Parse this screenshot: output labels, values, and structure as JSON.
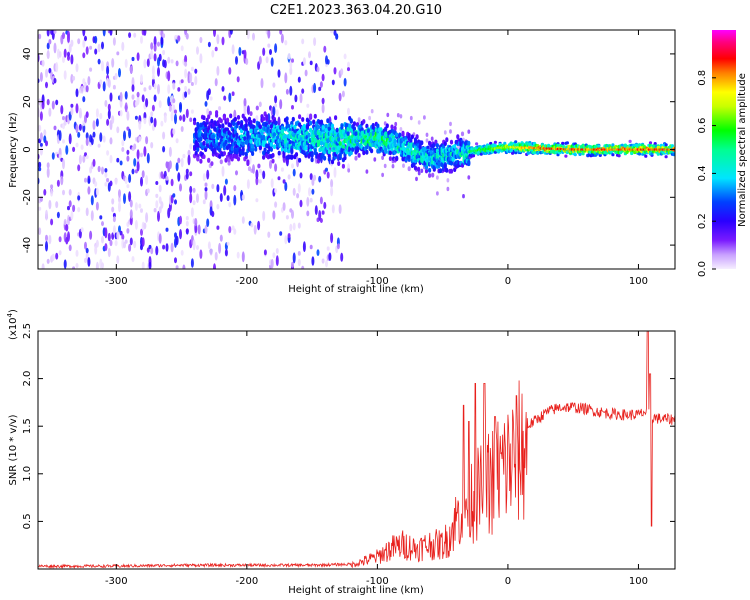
{
  "figure": {
    "title": "C2E1.2023.363.04.20.G10"
  },
  "chart_data": [
    {
      "type": "heatmap",
      "title": "C2E1.2023.363.04.20.G10",
      "xlabel": "Height of straight line (km)",
      "ylabel": "Frequency (Hz)",
      "xlim": [
        -360,
        128
      ],
      "ylim": [
        -50,
        50
      ],
      "x_ticks": [
        -300,
        -200,
        -100,
        0,
        100
      ],
      "y_ticks": [
        -40,
        -20,
        0,
        20,
        40
      ],
      "colorbar": {
        "label": "Normalized spectral amplitude",
        "range": [
          0,
          1
        ],
        "ticks": [
          0.0,
          0.2,
          0.4,
          0.6,
          0.8
        ],
        "colormap": "rainbow (purple-blue-cyan-green-yellow-red-magenta)"
      },
      "ridge": {
        "description": "scattered low-amplitude noise for heights below about -125 km; a concentrated band near 0 Hz beyond that",
        "center_freq_hz": [
          {
            "x": -230,
            "y": 5
          },
          {
            "x": -180,
            "y": 5
          },
          {
            "x": -130,
            "y": 4
          },
          {
            "x": -100,
            "y": 5
          },
          {
            "x": -80,
            "y": 1
          },
          {
            "x": -60,
            "y": -4
          },
          {
            "x": -40,
            "y": -2
          },
          {
            "x": -20,
            "y": 0
          },
          {
            "x": 0,
            "y": 1
          },
          {
            "x": 50,
            "y": 0
          },
          {
            "x": 100,
            "y": 0
          },
          {
            "x": 128,
            "y": 0
          }
        ],
        "peak_amplitude": [
          {
            "x": -230,
            "y": 0.35
          },
          {
            "x": -180,
            "y": 0.45
          },
          {
            "x": -120,
            "y": 0.55
          },
          {
            "x": -100,
            "y": 0.6
          },
          {
            "x": -80,
            "y": 0.5
          },
          {
            "x": -60,
            "y": 0.5
          },
          {
            "x": -40,
            "y": 0.5
          },
          {
            "x": -20,
            "y": 0.6
          },
          {
            "x": 0,
            "y": 0.7
          },
          {
            "x": 20,
            "y": 0.85
          },
          {
            "x": 100,
            "y": 0.85
          },
          {
            "x": 128,
            "y": 0.85
          }
        ]
      },
      "colors": {
        "scale": [
          "#f2e8ff",
          "#a050ff",
          "#5b00ff",
          "#0000ff",
          "#00ffff",
          "#00ff00",
          "#ffff00",
          "#ff0000",
          "#ff00ff"
        ]
      }
    },
    {
      "type": "line",
      "xlabel": "Height of straight line (km)",
      "ylabel": "SNR (10 * v/v)",
      "y_multiplier_label": "(x10",
      "y_multiplier_exp": "4",
      "y_multiplier_close": ")",
      "xlim": [
        -360,
        128
      ],
      "ylim": [
        0,
        2.5
      ],
      "x_ticks": [
        -300,
        -200,
        -100,
        0,
        100
      ],
      "y_ticks": [
        0.5,
        1.0,
        1.5,
        2.0,
        2.5
      ],
      "series": [
        {
          "color": "#e8201c",
          "envelope": [
            {
              "x": -360,
              "y": 0.03
            },
            {
              "x": -300,
              "y": 0.03
            },
            {
              "x": -250,
              "y": 0.04
            },
            {
              "x": -200,
              "y": 0.04
            },
            {
              "x": -150,
              "y": 0.04
            },
            {
              "x": -120,
              "y": 0.05
            },
            {
              "x": -110,
              "y": 0.1
            },
            {
              "x": -100,
              "y": 0.15
            },
            {
              "x": -90,
              "y": 0.25
            },
            {
              "x": -80,
              "y": 0.3
            },
            {
              "x": -70,
              "y": 0.25
            },
            {
              "x": -60,
              "y": 0.3
            },
            {
              "x": -50,
              "y": 0.3
            },
            {
              "x": -45,
              "y": 0.4
            },
            {
              "x": -40,
              "y": 0.6
            },
            {
              "x": -35,
              "y": 0.75
            },
            {
              "x": -30,
              "y": 0.85
            },
            {
              "x": -20,
              "y": 0.95
            },
            {
              "x": -10,
              "y": 1.15
            },
            {
              "x": 0,
              "y": 1.3
            },
            {
              "x": 10,
              "y": 1.45
            },
            {
              "x": 20,
              "y": 1.55
            },
            {
              "x": 30,
              "y": 1.65
            },
            {
              "x": 40,
              "y": 1.7
            },
            {
              "x": 50,
              "y": 1.7
            },
            {
              "x": 60,
              "y": 1.68
            },
            {
              "x": 70,
              "y": 1.65
            },
            {
              "x": 80,
              "y": 1.63
            },
            {
              "x": 90,
              "y": 1.62
            },
            {
              "x": 100,
              "y": 1.62
            },
            {
              "x": 105,
              "y": 1.65
            },
            {
              "x": 110,
              "y": 1.6
            },
            {
              "x": 115,
              "y": 1.58
            },
            {
              "x": 128,
              "y": 1.57
            }
          ],
          "spikes": [
            {
              "x": -34,
              "y": 1.72
            },
            {
              "x": -30,
              "y": 1.55
            },
            {
              "x": -25,
              "y": 1.95
            },
            {
              "x": -18,
              "y": 1.95
            },
            {
              "x": -10,
              "y": 1.6
            },
            {
              "x": 107,
              "y": 2.5
            },
            {
              "x": 109,
              "y": 2.05
            },
            {
              "x": 110,
              "y": 0.45
            }
          ]
        }
      ]
    }
  ]
}
